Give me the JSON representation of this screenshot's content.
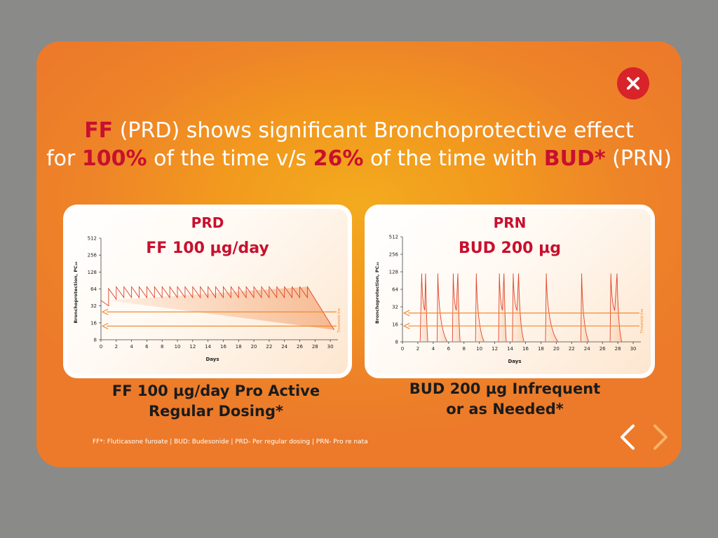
{
  "modal": {
    "close_icon": "close-icon",
    "headline": {
      "line1": [
        {
          "text": "FF",
          "highlight": true
        },
        {
          "text": " (PRD) shows significant Bronchoprotective effect",
          "highlight": false
        }
      ],
      "line2": [
        {
          "text": "for ",
          "highlight": false
        },
        {
          "text": "100%",
          "highlight": true
        },
        {
          "text": " of the time v/s ",
          "highlight": false
        },
        {
          "text": "26%",
          "highlight": true
        },
        {
          "text": " of the time with ",
          "highlight": false
        },
        {
          "text": "BUD*",
          "highlight": true
        },
        {
          "text": " (PRN)",
          "highlight": false
        }
      ]
    },
    "footnote": "FF*: Fluticasone furoate | BUD: Budesonide | PRD- Per regular dosing | PRN- Pro re nata",
    "nav": {
      "prev_icon": "chevron-left-icon",
      "next_icon": "chevron-right-icon"
    }
  },
  "colors": {
    "accent_red": "#c8102e",
    "line": "#e0442a",
    "arrow": "#f0892f"
  },
  "chart_data": [
    {
      "type": "line",
      "title": "PRD",
      "subtitle": "FF 100 µg/day",
      "xlabel": "Days",
      "ylabel": "Bronchoprotection, PC₂₀",
      "xlim": [
        0,
        31
      ],
      "xticks": [
        0,
        2,
        4,
        6,
        8,
        10,
        12,
        14,
        16,
        18,
        20,
        22,
        24,
        26,
        28,
        30
      ],
      "yscale": "log2",
      "ylim": [
        8,
        512
      ],
      "yticks": [
        8,
        16,
        32,
        64,
        128,
        256,
        512
      ],
      "threshold_label": "Threshold line",
      "threshold_levels": [
        25,
        14
      ],
      "series": [
        {
          "x": [
            0,
            1,
            1,
            2,
            2,
            3,
            3,
            4,
            4,
            5,
            5,
            6,
            6,
            7,
            7,
            8,
            8,
            9,
            9,
            10,
            10,
            11,
            11,
            12,
            12,
            13,
            13,
            14,
            14,
            15,
            15,
            16,
            16,
            17,
            17,
            18,
            18,
            19,
            19,
            20,
            20,
            21,
            21,
            22,
            22,
            23,
            23,
            24,
            24,
            25,
            25,
            26,
            26,
            27,
            27,
            30.5
          ],
          "y": [
            40,
            32,
            65,
            42,
            70,
            45,
            70,
            45,
            70,
            45,
            70,
            45,
            70,
            45,
            70,
            45,
            70,
            45,
            70,
            45,
            70,
            45,
            70,
            45,
            70,
            45,
            70,
            45,
            70,
            45,
            70,
            45,
            70,
            45,
            70,
            45,
            70,
            45,
            70,
            45,
            70,
            45,
            70,
            45,
            70,
            45,
            70,
            45,
            70,
            45,
            70,
            45,
            70,
            45,
            70,
            12
          ]
        }
      ],
      "caption_line1": "FF 100 µg/day Pro Active",
      "caption_line2": "Regular Dosing*"
    },
    {
      "type": "line",
      "title": "PRN",
      "subtitle": "BUD 200 µg",
      "xlabel": "Days",
      "ylabel": "Bronchoprotection, PC₂₀",
      "xlim": [
        0,
        31
      ],
      "xticks": [
        0,
        2,
        4,
        6,
        8,
        10,
        12,
        14,
        16,
        18,
        20,
        22,
        24,
        26,
        28,
        30
      ],
      "yscale": "log2",
      "ylim": [
        8,
        512
      ],
      "yticks": [
        8,
        16,
        32,
        64,
        128,
        256,
        512
      ],
      "threshold_label": "Threshold line",
      "threshold_levels": [
        25,
        15
      ],
      "peaks": [
        {
          "start": 2.3,
          "peak": 2.5,
          "end": 3.3,
          "dip_at": 2.9,
          "second_peak": 3.0
        },
        {
          "start": 4.5,
          "peak": 4.6,
          "end": 5.8
        },
        {
          "start": 6.5,
          "peak": 6.6,
          "end": 7.5,
          "dip_at": 7.0,
          "second_peak": 7.2
        },
        {
          "start": 9.5,
          "peak": 9.6,
          "end": 10.6
        },
        {
          "start": 12.5,
          "peak": 12.6,
          "end": 13.5,
          "dip_at": 13.0,
          "second_peak": 13.2
        },
        {
          "start": 14.3,
          "peak": 14.4,
          "end": 15.8,
          "dip_at": 14.9,
          "second_peak": 15.1
        },
        {
          "start": 18.6,
          "peak": 18.7,
          "end": 20.2
        },
        {
          "start": 23.2,
          "peak": 23.3,
          "end": 24.2
        },
        {
          "start": 27.0,
          "peak": 27.1,
          "end": 28.5,
          "dip_at": 27.6,
          "second_peak": 27.9
        }
      ],
      "peak_value": 120,
      "baseline": 8,
      "caption_line1": "BUD 200 µg Infrequent",
      "caption_line2": "or as Needed*"
    }
  ]
}
